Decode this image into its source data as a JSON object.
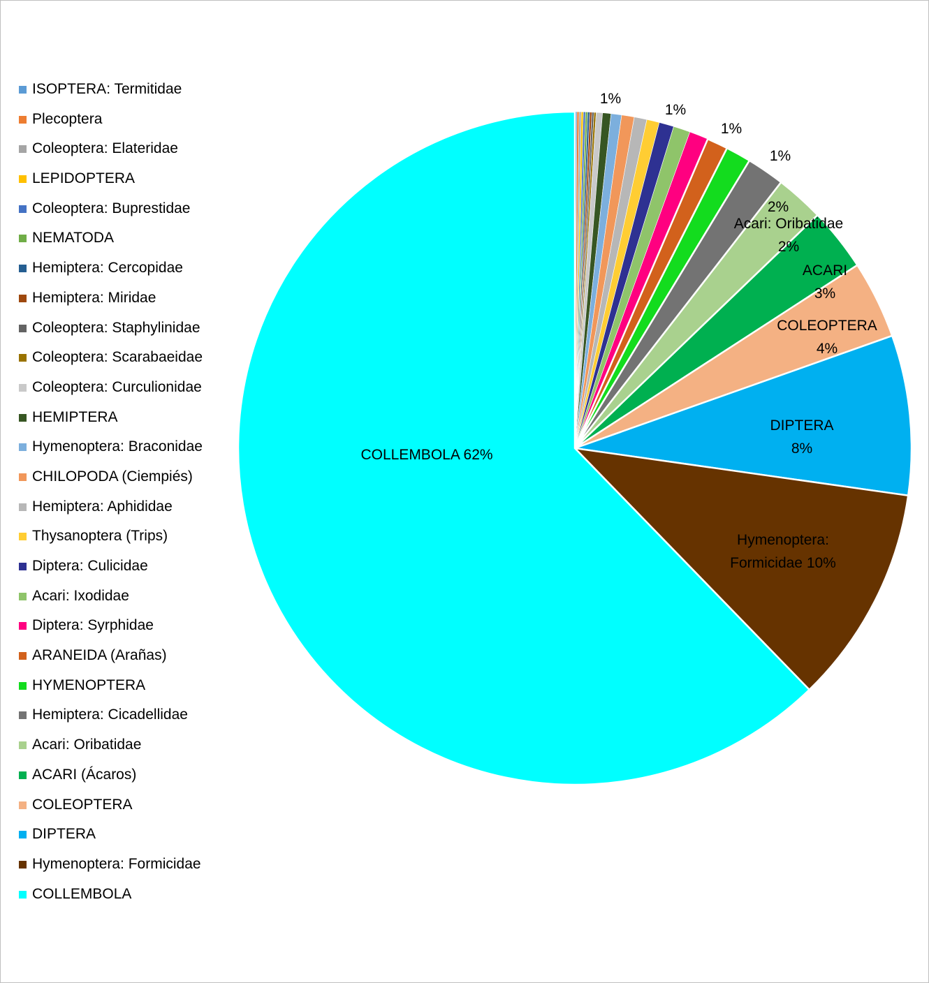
{
  "chart_data": {
    "type": "pie",
    "title": "",
    "legend_position": "left",
    "start_angle_deg": 0,
    "direction": "clockwise",
    "slices": [
      {
        "name": "ISOPTERA: Termitidae",
        "value": 0.1,
        "color": "#5b9bd5",
        "label": ""
      },
      {
        "name": "Plecoptera",
        "value": 0.1,
        "color": "#ed7d31",
        "label": ""
      },
      {
        "name": "Coleoptera: Elateridae",
        "value": 0.1,
        "color": "#a5a5a5",
        "label": ""
      },
      {
        "name": "LEPIDOPTERA",
        "value": 0.1,
        "color": "#ffc000",
        "label": ""
      },
      {
        "name": "Coleoptera: Buprestidae",
        "value": 0.1,
        "color": "#4472c4",
        "label": ""
      },
      {
        "name": "NEMATODA",
        "value": 0.1,
        "color": "#70ad47",
        "label": ""
      },
      {
        "name": "Hemiptera: Cercopidae",
        "value": 0.1,
        "color": "#255e91",
        "label": ""
      },
      {
        "name": "Hemiptera: Miridae",
        "value": 0.1,
        "color": "#9e480e",
        "label": ""
      },
      {
        "name": "Coleoptera: Staphylinidae",
        "value": 0.1,
        "color": "#636363",
        "label": ""
      },
      {
        "name": "Coleoptera: Scarabaeidae",
        "value": 0.1,
        "color": "#997300",
        "label": ""
      },
      {
        "name": "Coleoptera: Curculionidae",
        "value": 0.3,
        "color": "#c9c9c9",
        "label": ""
      },
      {
        "name": "HEMIPTERA",
        "value": 0.4,
        "color": "#375623",
        "label": ""
      },
      {
        "name": "Hymenoptera: Braconidae",
        "value": 0.5,
        "color": "#7cafdd",
        "label": ""
      },
      {
        "name": "CHILOPODA (Ciempiés)",
        "value": 0.6,
        "color": "#f1975a",
        "label": "1%"
      },
      {
        "name": "Hemiptera: Aphididae",
        "value": 0.6,
        "color": "#b7b7b7",
        "label": ""
      },
      {
        "name": "Thysanoptera (Trips)",
        "value": 0.6,
        "color": "#ffcd33",
        "label": ""
      },
      {
        "name": "Diptera: Culicidae",
        "value": 0.7,
        "color": "#2e3192",
        "label": "1%"
      },
      {
        "name": "Acari: Ixodidae",
        "value": 0.8,
        "color": "#8fc46a",
        "label": ""
      },
      {
        "name": "Diptera: Syrphidae",
        "value": 0.9,
        "color": "#ff0080",
        "label": "1%"
      },
      {
        "name": "ARANEIDA (Arañas)",
        "value": 1.0,
        "color": "#d2611c",
        "label": ""
      },
      {
        "name": "HYMENOPTERA",
        "value": 1.2,
        "color": "#13dc1e",
        "label": "1%"
      },
      {
        "name": "Hemiptera: Cicadellidae",
        "value": 1.8,
        "color": "#737373",
        "label": "2%"
      },
      {
        "name": "Acari: Oribatidae",
        "value": 2.3,
        "color": "#a9d18e",
        "label": "Acari: Oribatidae\n2%"
      },
      {
        "name": "ACARI (Ácaros)",
        "value": 3.0,
        "color": "#00b050",
        "label": "ACARI\n3%"
      },
      {
        "name": "COLEOPTERA",
        "value": 3.7,
        "color": "#f4b183",
        "label": "COLEOPTERA\n4%"
      },
      {
        "name": "DIPTERA",
        "value": 7.6,
        "color": "#00b0f0",
        "label": "DIPTERA\n8%"
      },
      {
        "name": "Hymenoptera: Formicidae",
        "value": 10.4,
        "color": "#663300",
        "label": "Hymenoptera:\nFormicidae 10%"
      },
      {
        "name": "COLLEMBOLA",
        "value": 61.7,
        "color": "#00ffff",
        "label": "COLLEMBOLA 62%"
      }
    ]
  }
}
